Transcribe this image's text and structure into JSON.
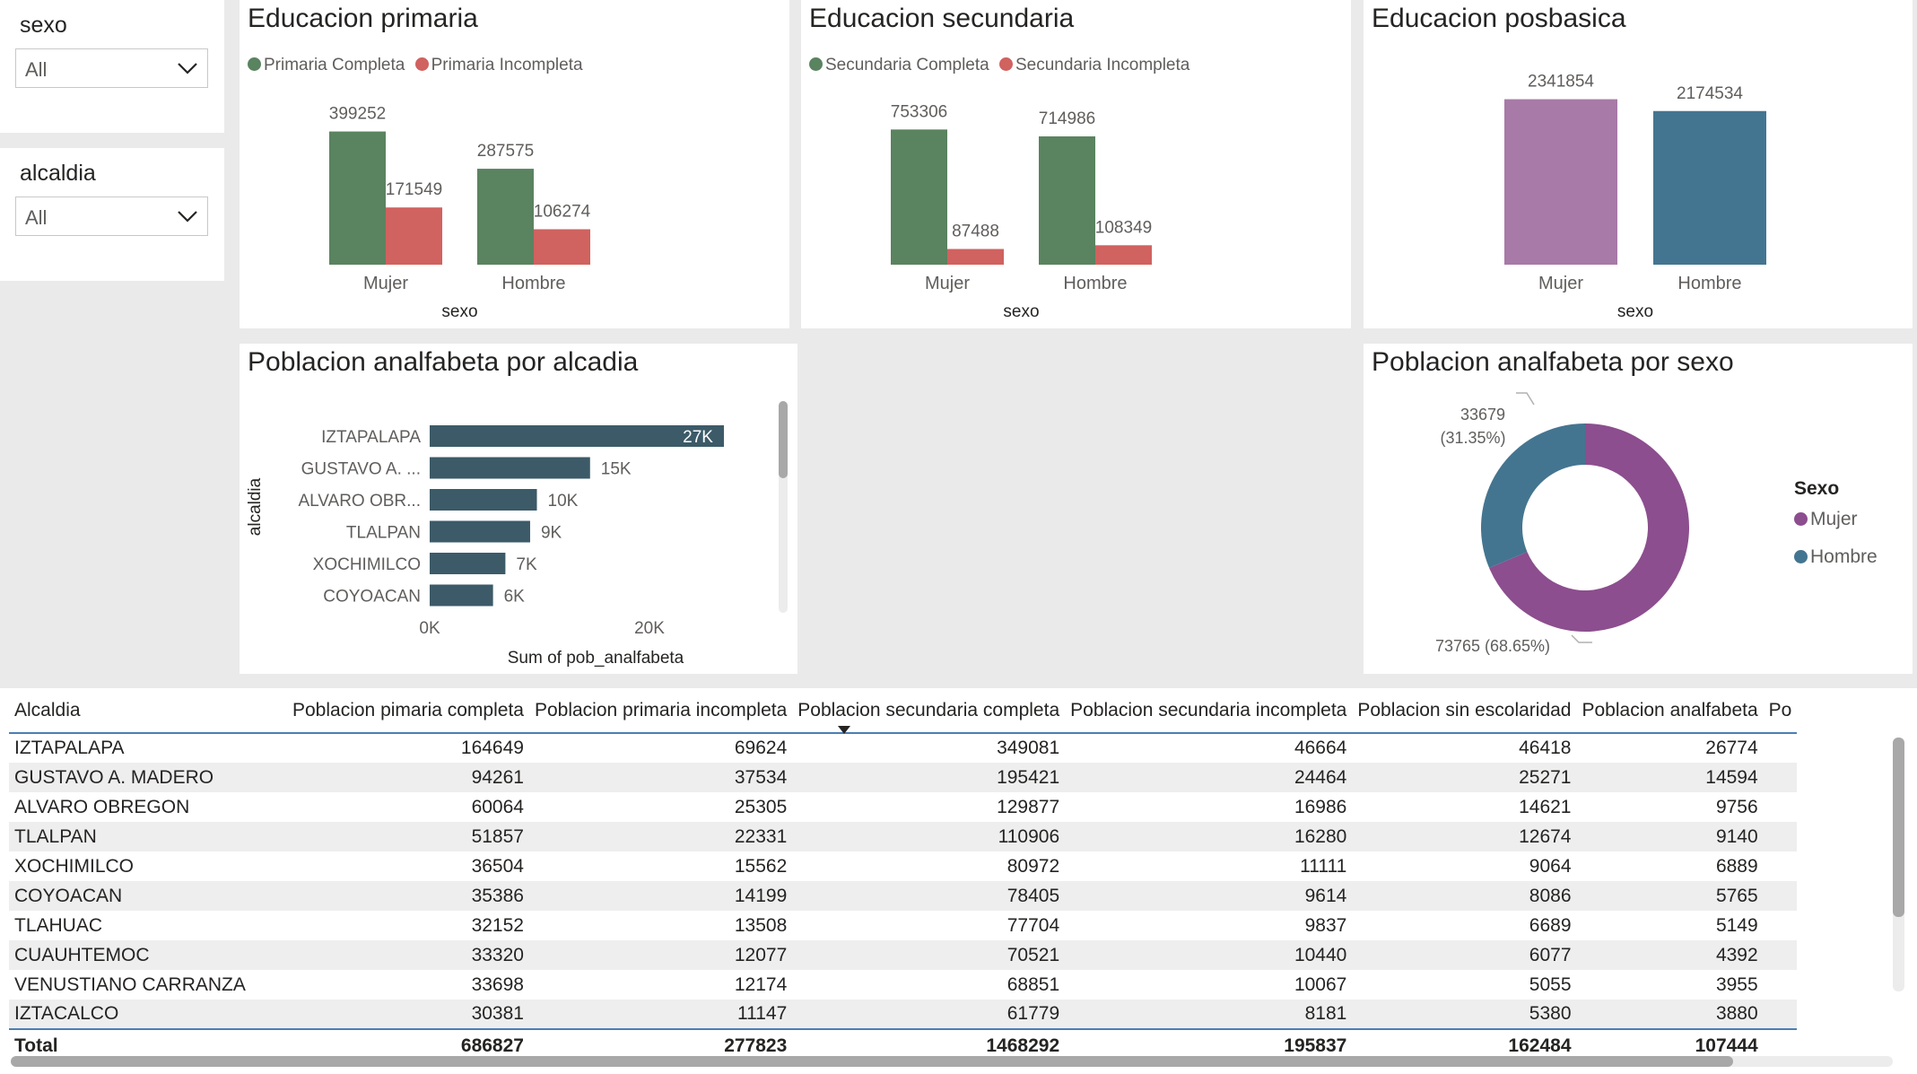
{
  "slicers": [
    {
      "title": "sexo",
      "value": "All"
    },
    {
      "title": "alcaldia",
      "value": "All"
    }
  ],
  "primaria": {
    "title": "Educacion primaria",
    "legend": [
      "Primaria Completa",
      "Primaria Incompleta"
    ],
    "xlabel": "sexo",
    "colors": [
      "#5a8360",
      "#d0625f"
    ]
  },
  "secundaria": {
    "title": "Educacion secundaria",
    "legend": [
      "Secundaria Completa",
      "Secundaria Incompleta"
    ],
    "xlabel": "sexo",
    "colors": [
      "#5a8360",
      "#d0625f"
    ]
  },
  "posbasica": {
    "title": "Educacion posbasica",
    "xlabel": "sexo",
    "colors": [
      "#a77aa8",
      "#447590"
    ]
  },
  "analfabeta_alcaldia": {
    "title": "Poblacion analfabeta por alcadia",
    "ylabel": "alcaldia",
    "xlabel": "Sum of pob_analfabeta",
    "ticks": [
      "0K",
      "20K"
    ],
    "color": "#3c5a68"
  },
  "analfabeta_sexo": {
    "title": "Poblacion analfabeta por sexo",
    "legend_title": "Sexo",
    "legend": [
      "Mujer",
      "Hombre"
    ],
    "labels": [
      {
        "value": "73765",
        "pct": "(68.65%)"
      },
      {
        "value": "33679",
        "pct": "(31.35%)"
      }
    ],
    "colors": [
      "#8c4e8e",
      "#447590"
    ]
  },
  "table": {
    "headers": [
      "Alcaldia",
      "Poblacion pimaria completa",
      "Poblacion primaria incompleta",
      "Poblacion secundaria completa",
      "Poblacion secundaria incompleta",
      "Poblacion sin escolaridad",
      "Poblacion analfabeta",
      "Po"
    ],
    "rows": [
      [
        "IZTAPALAPA",
        "164649",
        "69624",
        "349081",
        "46664",
        "46418",
        "26774"
      ],
      [
        "GUSTAVO A. MADERO",
        "94261",
        "37534",
        "195421",
        "24464",
        "25271",
        "14594"
      ],
      [
        "ALVARO OBREGON",
        "60064",
        "25305",
        "129877",
        "16986",
        "14621",
        "9756"
      ],
      [
        "TLALPAN",
        "51857",
        "22331",
        "110906",
        "16280",
        "12674",
        "9140"
      ],
      [
        "XOCHIMILCO",
        "36504",
        "15562",
        "80972",
        "11111",
        "9064",
        "6889"
      ],
      [
        "COYOACAN",
        "35386",
        "14199",
        "78405",
        "9614",
        "8086",
        "5765"
      ],
      [
        "TLAHUAC",
        "32152",
        "13508",
        "77704",
        "9837",
        "6689",
        "5149"
      ],
      [
        "CUAUHTEMOC",
        "33320",
        "12077",
        "70521",
        "10440",
        "6077",
        "4392"
      ],
      [
        "VENUSTIANO CARRANZA",
        "33698",
        "12174",
        "68851",
        "10067",
        "5055",
        "3955"
      ],
      [
        "IZTACALCO",
        "30381",
        "11147",
        "61779",
        "8181",
        "5380",
        "3880"
      ]
    ],
    "total": [
      "Total",
      "686827",
      "277823",
      "1468292",
      "195837",
      "162484",
      "107444"
    ]
  },
  "chart_data": [
    {
      "type": "bar",
      "title": "Educacion primaria",
      "xlabel": "sexo",
      "categories": [
        "Mujer",
        "Hombre"
      ],
      "series": [
        {
          "name": "Primaria Completa",
          "values": [
            399252,
            287575
          ]
        },
        {
          "name": "Primaria Incompleta",
          "values": [
            171549,
            106274
          ]
        }
      ],
      "legend": "top-left"
    },
    {
      "type": "bar",
      "title": "Educacion secundaria",
      "xlabel": "sexo",
      "categories": [
        "Mujer",
        "Hombre"
      ],
      "series": [
        {
          "name": "Secundaria Completa",
          "values": [
            753306,
            714986
          ]
        },
        {
          "name": "Secundaria Incompleta",
          "values": [
            87488,
            108349
          ]
        }
      ],
      "legend": "top-left"
    },
    {
      "type": "bar",
      "title": "Educacion posbasica",
      "xlabel": "sexo",
      "categories": [
        "Mujer",
        "Hombre"
      ],
      "values": [
        2341854,
        2174534
      ]
    },
    {
      "type": "bar",
      "orientation": "horizontal",
      "title": "Poblacion analfabeta por alcadia",
      "xlabel": "Sum of pob_analfabeta",
      "ylabel": "alcaldia",
      "categories": [
        "IZTAPALAPA",
        "GUSTAVO A. ...",
        "ALVARO OBR...",
        "TLALPAN",
        "XOCHIMILCO",
        "COYOACAN"
      ],
      "values": [
        26774,
        14594,
        9756,
        9140,
        6889,
        5765
      ],
      "data_labels": [
        "27K",
        "15K",
        "10K",
        "9K",
        "7K",
        "6K"
      ],
      "xlim": [
        0,
        30000
      ]
    },
    {
      "type": "pie",
      "title": "Poblacion analfabeta por sexo",
      "labels": [
        "Mujer",
        "Hombre"
      ],
      "values": [
        73765,
        33679
      ],
      "percent": [
        68.65,
        31.35
      ],
      "donut": true,
      "legend": "right"
    }
  ]
}
